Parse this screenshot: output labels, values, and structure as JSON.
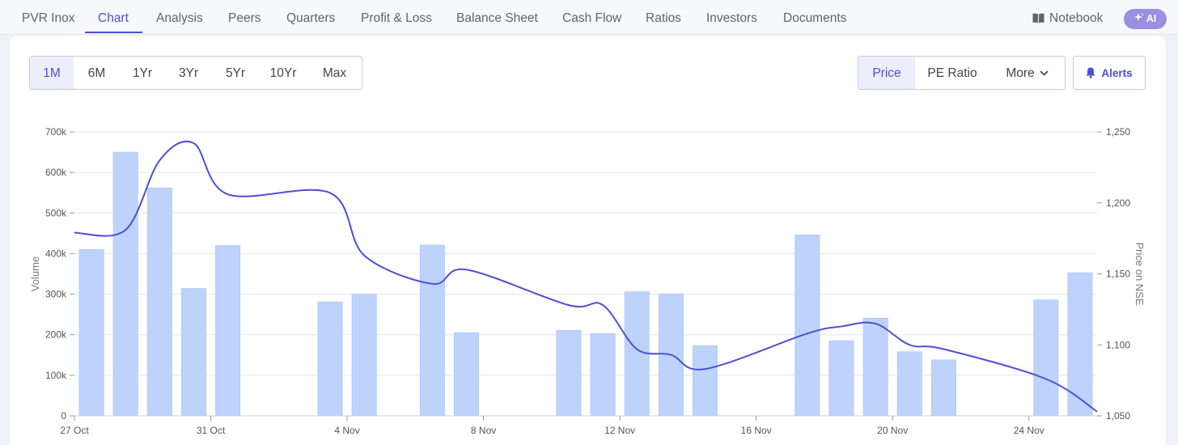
{
  "nav": {
    "tabs": [
      {
        "label": "PVR Inox"
      },
      {
        "label": "Chart"
      },
      {
        "label": "Analysis"
      },
      {
        "label": "Peers"
      },
      {
        "label": "Quarters"
      },
      {
        "label": "Profit & Loss"
      },
      {
        "label": "Balance Sheet"
      },
      {
        "label": "Cash Flow"
      },
      {
        "label": "Ratios"
      },
      {
        "label": "Investors"
      },
      {
        "label": "Documents"
      }
    ],
    "active_tab": "Chart",
    "notebook_label": "Notebook",
    "notebook_icon": "book-icon",
    "ai_label": "AI",
    "ai_icon": "sparkle-icon"
  },
  "controls": {
    "ranges": [
      "1M",
      "6M",
      "1Yr",
      "3Yr",
      "5Yr",
      "10Yr",
      "Max"
    ],
    "active_range": "1M",
    "metrics": [
      "Price",
      "PE Ratio",
      "More"
    ],
    "active_metric": "Price",
    "more_icon": "chevron-down-icon",
    "alerts_label": "Alerts",
    "alerts_icon": "bell-icon"
  },
  "colors": {
    "accent": "#4d4fd6",
    "bar_fill": "#bdd3fb",
    "bar_stroke": "#a9c3f3",
    "price_line": "#4d4fd6",
    "grid": "#e6e6e6"
  },
  "chart_data": {
    "type": "bar+line",
    "title": "",
    "x_tick_labels": [
      "27 Oct",
      "31 Oct",
      "4 Nov",
      "8 Nov",
      "12 Nov",
      "16 Nov",
      "20 Nov",
      "24 Nov"
    ],
    "x_tick_dates": [
      "2025-10-27",
      "2025-10-31",
      "2025-11-04",
      "2025-11-08",
      "2025-11-12",
      "2025-11-16",
      "2025-11-20",
      "2025-11-24"
    ],
    "left_axis": {
      "label": "Volume",
      "range": [
        0,
        700000
      ],
      "ticks": [
        0,
        100000,
        200000,
        300000,
        400000,
        500000,
        600000,
        700000
      ],
      "tick_labels": [
        "0",
        "100k",
        "200k",
        "300k",
        "400k",
        "500k",
        "600k",
        "700k"
      ]
    },
    "right_axis": {
      "label": "Price on NSE",
      "range": [
        1050,
        1250
      ],
      "ticks": [
        1050,
        1100,
        1150,
        1200,
        1250
      ],
      "tick_labels": [
        "1,050",
        "1,100",
        "1,150",
        "1,200",
        "1,250"
      ]
    },
    "grid": true,
    "series": [
      {
        "kind": "bar",
        "axis": "left",
        "points": [
          {
            "x": "2025-10-27",
            "y": 410000
          },
          {
            "x": "2025-10-28",
            "y": 650000
          },
          {
            "x": "2025-10-29",
            "y": 562000
          },
          {
            "x": "2025-10-30",
            "y": 314000
          },
          {
            "x": "2025-10-31",
            "y": 420000
          },
          {
            "x": "2025-11-03",
            "y": 281000
          },
          {
            "x": "2025-11-04",
            "y": 300000
          },
          {
            "x": "2025-11-06",
            "y": 421000
          },
          {
            "x": "2025-11-07",
            "y": 205000
          },
          {
            "x": "2025-11-10",
            "y": 211000
          },
          {
            "x": "2025-11-11",
            "y": 203000
          },
          {
            "x": "2025-11-12",
            "y": 306000
          },
          {
            "x": "2025-11-13",
            "y": 301000
          },
          {
            "x": "2025-11-14",
            "y": 173000
          },
          {
            "x": "2025-11-17",
            "y": 446000
          },
          {
            "x": "2025-11-18",
            "y": 185000
          },
          {
            "x": "2025-11-19",
            "y": 241000
          },
          {
            "x": "2025-11-20",
            "y": 158000
          },
          {
            "x": "2025-11-21",
            "y": 138000
          },
          {
            "x": "2025-11-24",
            "y": 286000
          },
          {
            "x": "2025-11-25",
            "y": 353000
          }
        ]
      },
      {
        "kind": "line",
        "axis": "right",
        "points": [
          {
            "x": "2025-10-27",
            "y": 1179
          },
          {
            "x": "2025-10-28",
            "y": 1181
          },
          {
            "x": "2025-10-29",
            "y": 1230
          },
          {
            "x": "2025-10-30",
            "y": 1242
          },
          {
            "x": "2025-10-31",
            "y": 1206
          },
          {
            "x": "2025-11-03",
            "y": 1207
          },
          {
            "x": "2025-11-04",
            "y": 1163
          },
          {
            "x": "2025-11-06",
            "y": 1143
          },
          {
            "x": "2025-11-07",
            "y": 1153
          },
          {
            "x": "2025-11-10",
            "y": 1128
          },
          {
            "x": "2025-11-11",
            "y": 1128
          },
          {
            "x": "2025-11-12",
            "y": 1097
          },
          {
            "x": "2025-11-13",
            "y": 1093
          },
          {
            "x": "2025-11-14",
            "y": 1083
          },
          {
            "x": "2025-11-17",
            "y": 1108
          },
          {
            "x": "2025-11-18",
            "y": 1113
          },
          {
            "x": "2025-11-19",
            "y": 1115
          },
          {
            "x": "2025-11-20",
            "y": 1100
          },
          {
            "x": "2025-11-21",
            "y": 1097
          },
          {
            "x": "2025-11-24",
            "y": 1076
          },
          {
            "x": "2025-11-25",
            "y": 1053
          }
        ]
      }
    ]
  }
}
